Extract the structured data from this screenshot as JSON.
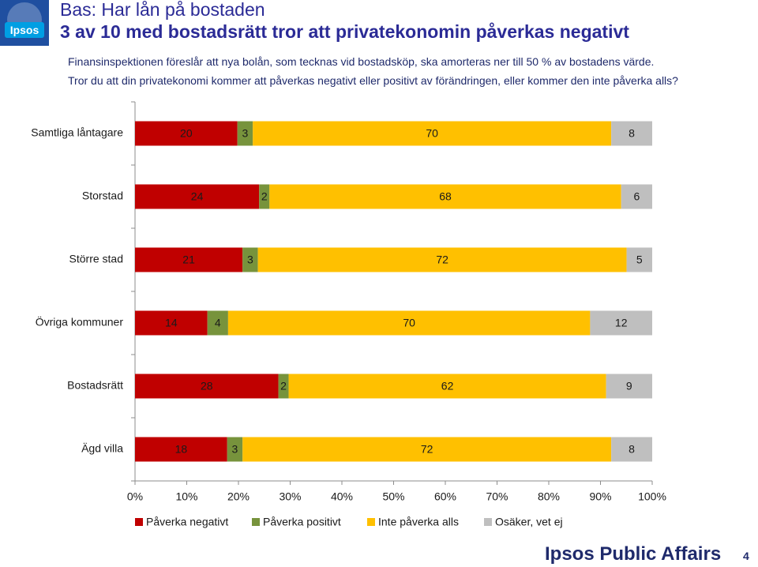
{
  "header": {
    "logo_text": "Ipsos",
    "title_line1": "Bas: Har lån på bostaden",
    "title_line2": "3 av 10 med bostadsrätt tror att privatekonomin påverkas negativt",
    "question_line1": "Finansinspektionen föreslår att nya bolån, som tecknas vid bostadsköp, ska amorteras ner till 50 % av bostadens värde.",
    "question_line2": "Tror du att din privatekonomi kommer att påverkas negativt eller positivt av förändringen, eller kommer den inte påverka alls?"
  },
  "footer": {
    "brand": "Ipsos Public Affairs",
    "page_number": "4"
  },
  "colors": {
    "negative": "#c00000",
    "positive": "#77933c",
    "none": "#ffc000",
    "unsure": "#bfbfbf",
    "axis": "#8c8c8c"
  },
  "chart_data": {
    "type": "bar",
    "orientation": "horizontal",
    "stacked": "percent",
    "categories": [
      "Samtliga låntagare",
      "Storstad",
      "Större stad",
      "Övriga kommuner",
      "Bostadsrätt",
      "Ägd villa"
    ],
    "series": [
      {
        "name": "Påverka negativt",
        "color_key": "negative",
        "values": [
          20,
          24,
          21,
          14,
          28,
          18
        ]
      },
      {
        "name": "Påverka positivt",
        "color_key": "positive",
        "values": [
          3,
          2,
          3,
          4,
          2,
          3
        ]
      },
      {
        "name": "Inte påverka alls",
        "color_key": "none",
        "values": [
          70,
          68,
          72,
          70,
          62,
          72
        ]
      },
      {
        "name": "Osäker, vet ej",
        "color_key": "unsure",
        "values": [
          8,
          6,
          5,
          12,
          9,
          8
        ]
      }
    ],
    "x_ticks": [
      "0%",
      "10%",
      "20%",
      "30%",
      "40%",
      "50%",
      "60%",
      "70%",
      "80%",
      "90%",
      "100%"
    ],
    "xlim": [
      0,
      100
    ],
    "legend_position": "bottom"
  }
}
